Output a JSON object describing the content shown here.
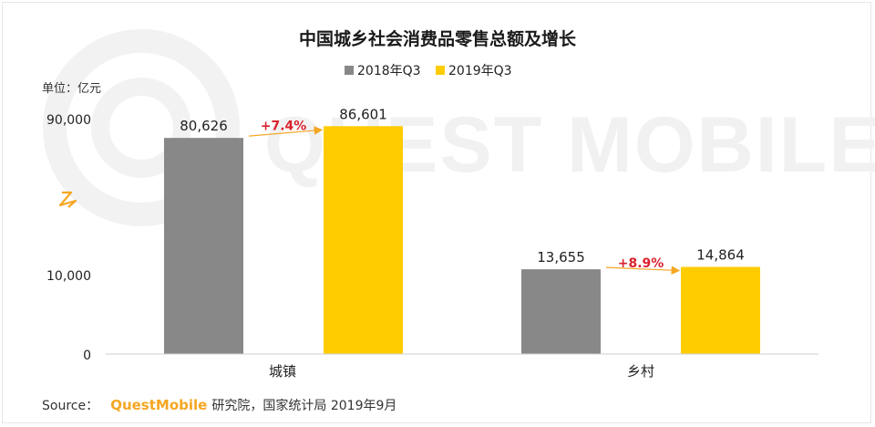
{
  "chart_data": {
    "type": "bar",
    "title": "中国城乡社会消费品零售总额及增长",
    "unit_label": "单位：亿元",
    "categories": [
      "城镇",
      "乡村"
    ],
    "series": [
      {
        "name": "2018年Q3",
        "values": [
          80626,
          13655
        ],
        "labels": [
          "80,626",
          "13,655"
        ],
        "color": "#888888"
      },
      {
        "name": "2019年Q3",
        "values": [
          86601,
          14864
        ],
        "labels": [
          "86,601",
          "14,864"
        ],
        "color": "#ffcc00"
      }
    ],
    "growth": [
      "+7.4%",
      "+8.9%"
    ],
    "growth_color": "#d9232e",
    "y_ticks": [
      {
        "label": "90,000",
        "value": 90000
      },
      {
        "label": "10,000",
        "value": 10000
      },
      {
        "label": "0",
        "value": 0
      }
    ],
    "y_axis_break": true,
    "ylim": [
      0,
      90000
    ],
    "legend_position": "top-center",
    "grid": false
  },
  "watermark": "QUEST MOBILE",
  "source": {
    "prefix": "Source：",
    "brand": "QuestMobile",
    "suffix": "研究院，国家统计局 2019年9月",
    "brand_color": "#f5a623"
  }
}
